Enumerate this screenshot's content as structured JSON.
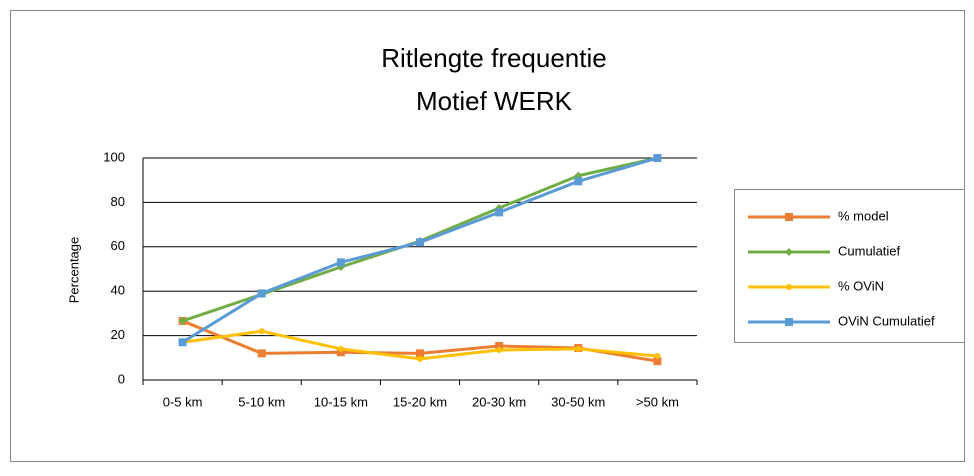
{
  "chart_data": {
    "type": "line",
    "title": "Ritlengte frequentie",
    "subtitle": "Motief WERK",
    "y_label": "Percentage",
    "categories": [
      "0-5 km",
      "5-10 km",
      "10-15 km",
      "15-20 km",
      "20-30 km",
      "30-50 km",
      ">50 km"
    ],
    "series": [
      {
        "name": "% model",
        "color": "#ed7d31",
        "marker": "square",
        "values": [
          26.6,
          12,
          12.5,
          12,
          15.3,
          14.4,
          8.5
        ]
      },
      {
        "name": "Cumulatief",
        "color": "#70ad47",
        "marker": "diamond",
        "values": [
          26.6,
          38.6,
          50.9,
          62.6,
          77.5,
          92,
          100
        ]
      },
      {
        "name": "% OViN",
        "color": "#ffc000",
        "marker": "circle",
        "values": [
          17,
          22,
          14,
          9.5,
          13.5,
          14,
          10.8
        ]
      },
      {
        "name": "OViN Cumulatief",
        "color": "#5b9bd5",
        "marker": "square",
        "values": [
          17,
          39,
          53,
          62,
          75.5,
          89.5,
          100
        ]
      }
    ],
    "ylim": [
      0,
      100
    ],
    "yticks": [
      0,
      20,
      40,
      60,
      80,
      100
    ],
    "grid": true,
    "legend": "right"
  }
}
